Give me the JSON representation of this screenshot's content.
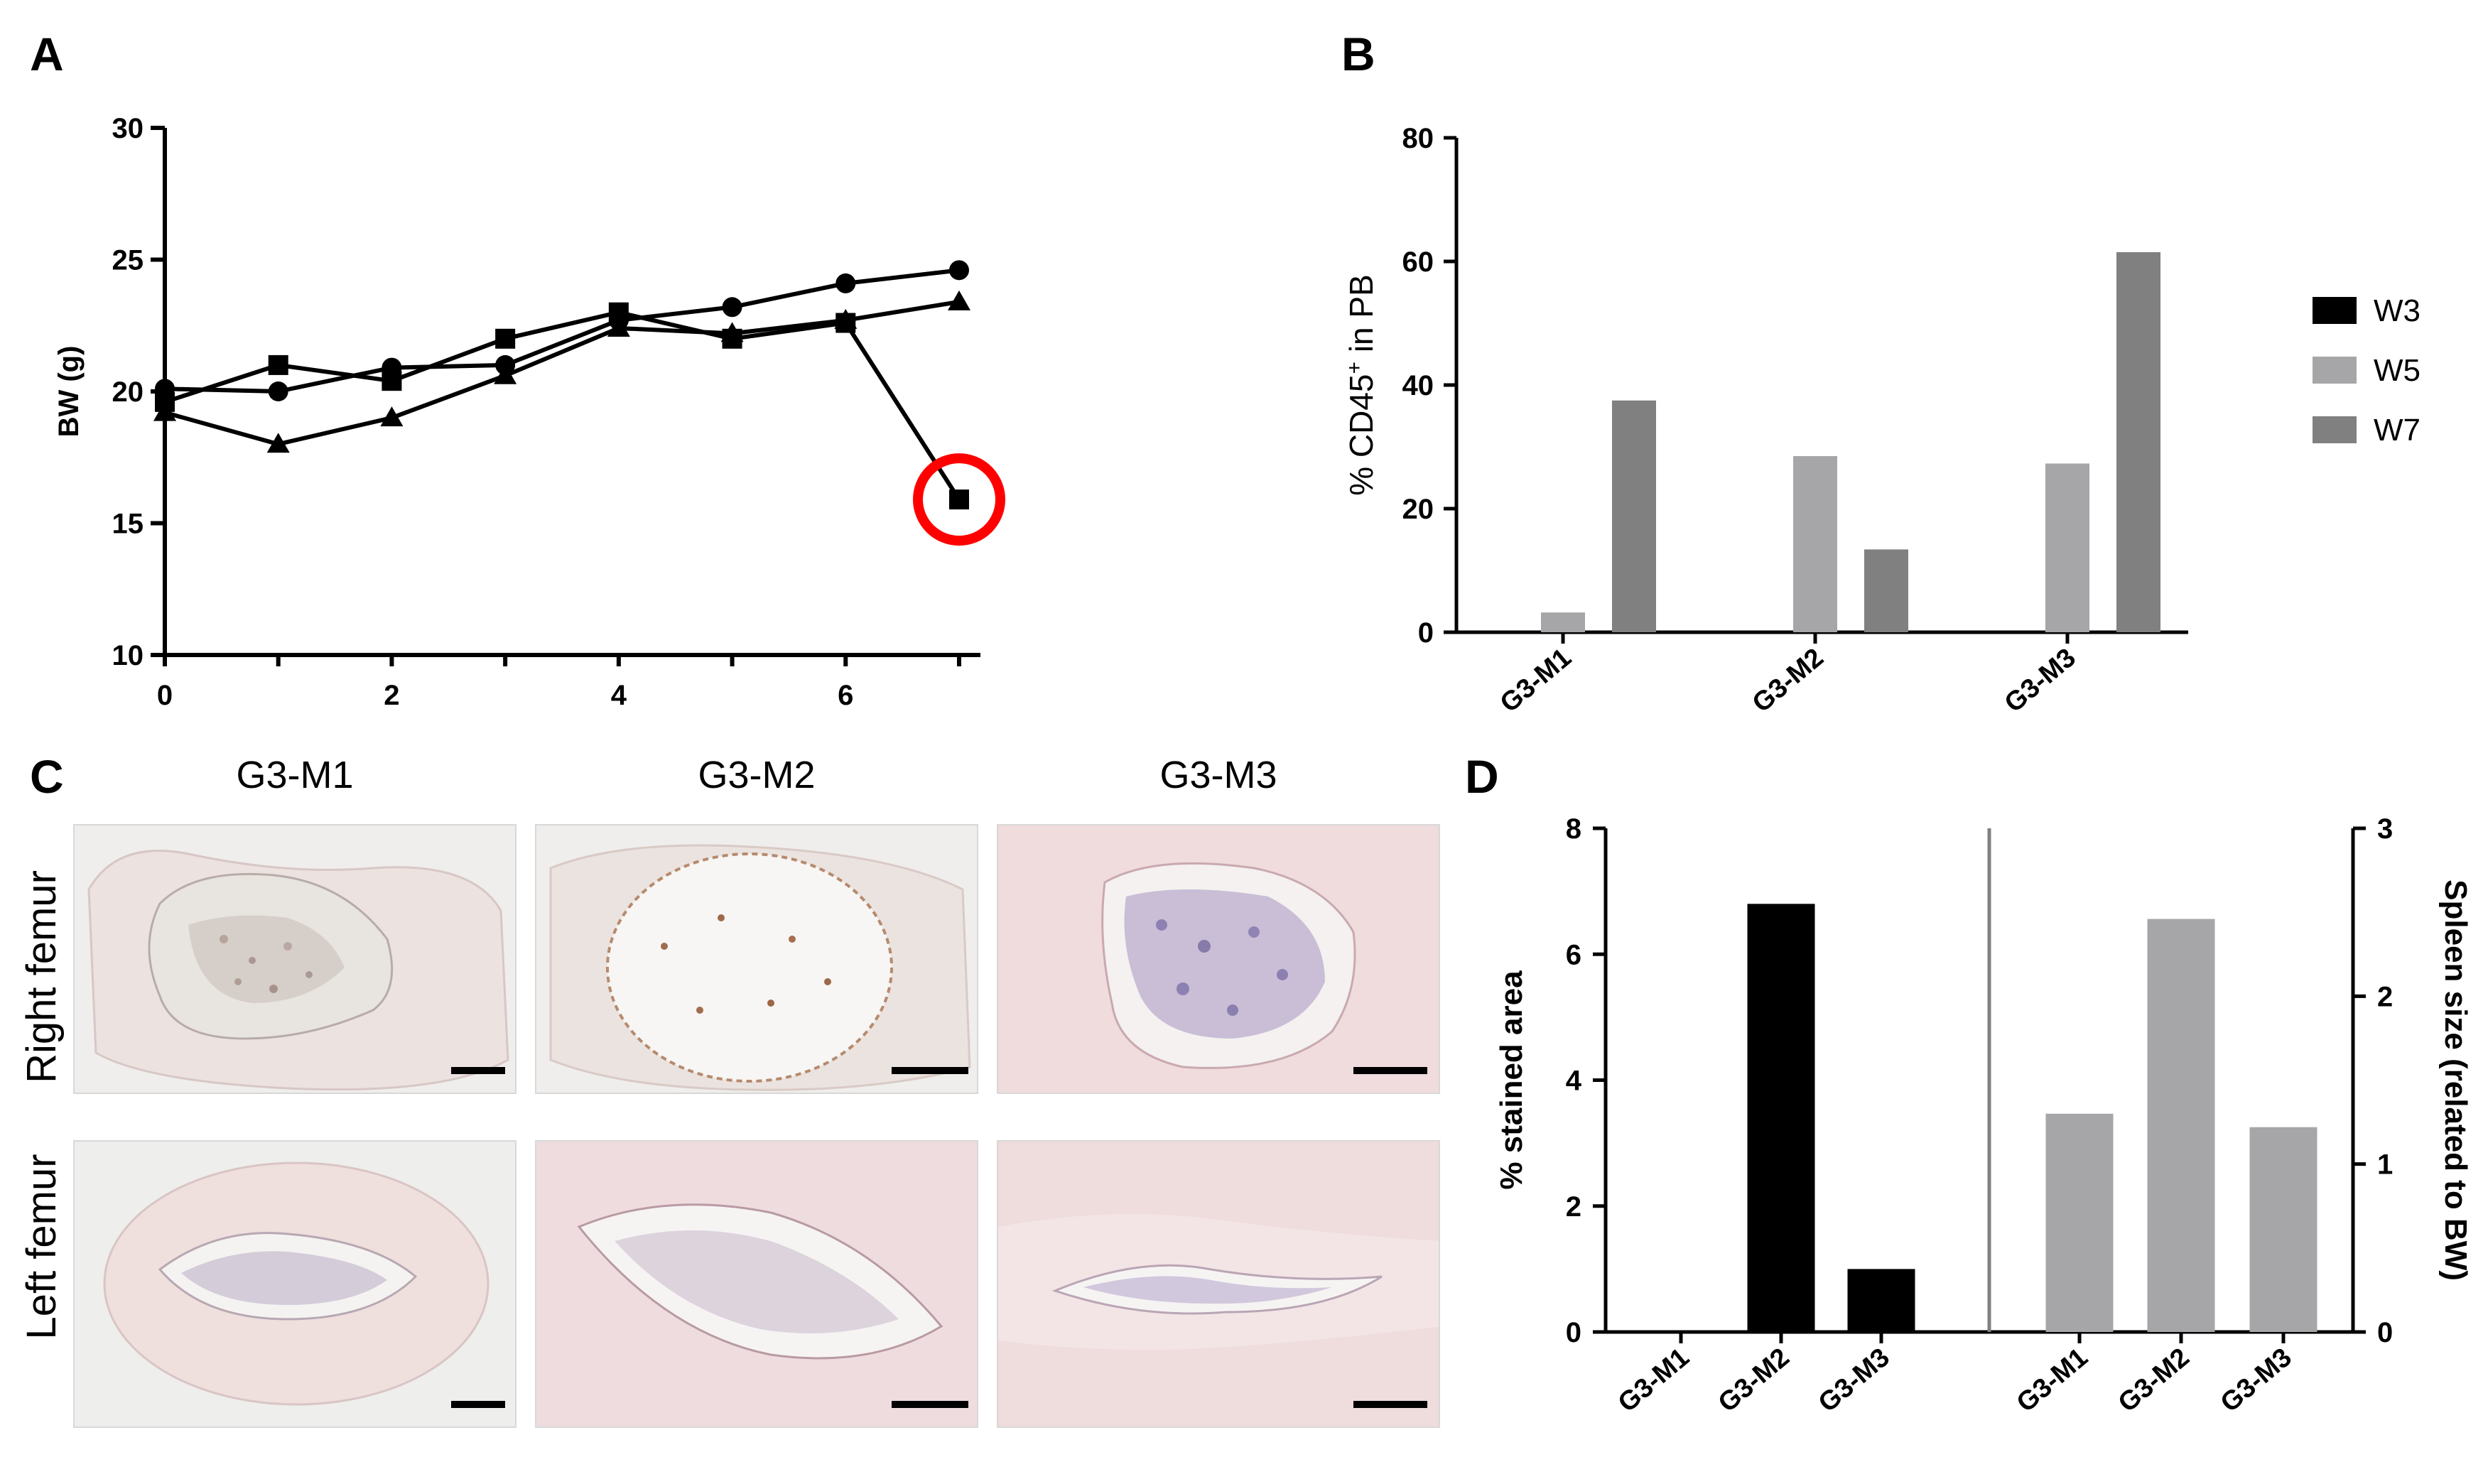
{
  "panels": {
    "a": {
      "letter": "A"
    },
    "b": {
      "letter": "B"
    },
    "c": {
      "letter": "C"
    },
    "d": {
      "letter": "D"
    }
  },
  "chart_data": [
    {
      "id": "A",
      "type": "line",
      "ylabel": "BW (g)",
      "xlabel": "",
      "xlim": [
        0,
        7
      ],
      "ylim": [
        10,
        30
      ],
      "xticks": [
        0,
        2,
        4,
        6
      ],
      "yticks": [
        10,
        15,
        20,
        25,
        30
      ],
      "series": [
        {
          "marker": "circle",
          "x": [
            0,
            1,
            2,
            3,
            4,
            5,
            6,
            7
          ],
          "y": [
            20.1,
            20.0,
            20.9,
            21.0,
            22.7,
            23.2,
            24.1,
            24.6
          ]
        },
        {
          "marker": "square",
          "x": [
            0,
            1,
            2,
            3,
            4,
            5,
            6,
            7
          ],
          "y": [
            19.6,
            21.0,
            20.4,
            22.0,
            23.0,
            22.0,
            22.6,
            15.9
          ]
        },
        {
          "marker": "triangle",
          "x": [
            0,
            1,
            2,
            3,
            4,
            5,
            6,
            7
          ],
          "y": [
            19.2,
            18.0,
            19.0,
            20.6,
            22.4,
            22.2,
            22.7,
            23.4
          ]
        }
      ],
      "highlight": {
        "x": 7,
        "y": 15.9,
        "color": "#ff0000"
      }
    },
    {
      "id": "B",
      "type": "bar",
      "ylabel_main": "% CD45",
      "ylabel_sup": "+",
      "ylabel_rest": " in PB",
      "categories": [
        "G3-M1",
        "G3-M2",
        "G3-M3"
      ],
      "ylim": [
        0,
        80
      ],
      "yticks": [
        0,
        20,
        40,
        60,
        80
      ],
      "legend_position": "right",
      "series": [
        {
          "name": "W3",
          "color": "#000000",
          "values": [
            0,
            0,
            0
          ]
        },
        {
          "name": "W5",
          "color": "#a6a6a8",
          "values": [
            3.2,
            28.5,
            27.3
          ]
        },
        {
          "name": "W7",
          "color": "#808080",
          "values": [
            37.5,
            13.4,
            61.5
          ]
        }
      ]
    },
    {
      "id": "D",
      "type": "bar",
      "left": {
        "ylabel": "% stained area",
        "ylim": [
          0,
          8
        ],
        "yticks": [
          0,
          2,
          4,
          6,
          8
        ],
        "categories": [
          "G3-M1",
          "G3-M2",
          "G3-M3"
        ],
        "values": [
          0,
          6.8,
          1.0
        ],
        "color": "#000000"
      },
      "right": {
        "ylabel": "Spleen size (related to BW)",
        "ylim": [
          0,
          3
        ],
        "yticks": [
          0,
          1,
          2,
          3
        ],
        "categories": [
          "G3-M1",
          "G3-M2",
          "G3-M3"
        ],
        "values": [
          1.3,
          2.46,
          1.22
        ],
        "color": "#a6a6a8"
      }
    }
  ],
  "histology": {
    "columns": [
      "G3-M1",
      "G3-M2",
      "G3-M3"
    ],
    "rows": [
      "Right femur",
      "Left femur"
    ]
  }
}
